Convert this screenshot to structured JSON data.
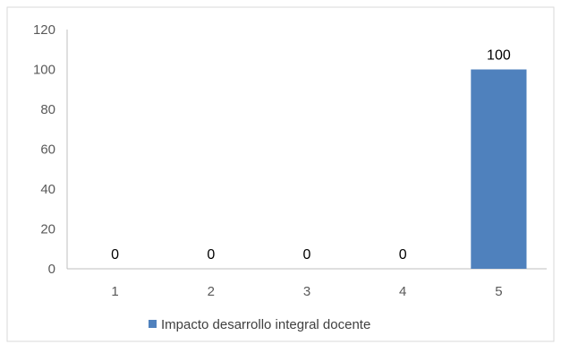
{
  "chart_data": {
    "type": "bar",
    "title": "",
    "xlabel": "",
    "ylabel": "",
    "categories": [
      "1",
      "2",
      "3",
      "4",
      "5"
    ],
    "series": [
      {
        "name": "Impacto desarrollo integral docente",
        "values": [
          0,
          0,
          0,
          0,
          100
        ],
        "color": "#4F81BD"
      }
    ],
    "data_labels": [
      "0",
      "0",
      "0",
      "0",
      "100"
    ],
    "ylim": [
      0,
      120
    ],
    "yticks": [
      "0",
      "20",
      "40",
      "60",
      "80",
      "100",
      "120"
    ],
    "grid": false,
    "legend_position": "bottom"
  }
}
